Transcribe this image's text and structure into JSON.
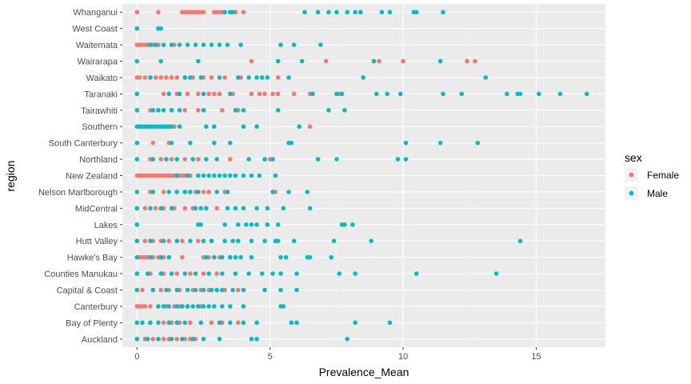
{
  "chart_data": {
    "type": "scatter",
    "xlabel": "Prevalence_Mean",
    "ylabel": "region",
    "xlim": [
      -0.55,
      17.6
    ],
    "xticks": [
      0,
      5,
      10,
      15
    ],
    "grid": true,
    "background": "#ebebeb",
    "legend": {
      "title": "sex",
      "position": "right",
      "entries": [
        {
          "name": "Female",
          "color": "#f8766d"
        },
        {
          "name": "Male",
          "color": "#00bfc4"
        }
      ]
    },
    "categories": [
      "Auckland",
      "Bay of Plenty",
      "Canterbury",
      "Capital & Coast",
      "Counties Manukau",
      "Hawke's Bay",
      "Hutt Valley",
      "Lakes",
      "MidCentral",
      "Nelson Marlborough",
      "New Zealand",
      "Northland",
      "South Canterbury",
      "Southern",
      "Tairawhiti",
      "Taranaki",
      "Waikato",
      "Wairarapa",
      "Waitemata",
      "West Coast",
      "Whanganui"
    ],
    "series": [
      {
        "name": "Female",
        "color": "#f8766d",
        "points": {
          "Auckland": [
            0,
            0.3,
            0.6,
            0.8,
            1.0,
            1.2,
            1.5,
            1.8,
            2.0,
            2.2
          ],
          "Bay of Plenty": [
            0,
            0.5,
            1.0,
            1.3,
            1.6,
            2.0,
            2.8,
            3.2,
            3.8
          ],
          "Canterbury": [
            0,
            0.1,
            0.2,
            0.3,
            0.5,
            0.8,
            1.1,
            1.4,
            1.6,
            1.9,
            2.4
          ],
          "Capital & Coast": [
            0,
            0.2,
            0.6,
            0.9,
            1.2,
            1.6,
            1.9,
            2.1,
            2.4,
            2.7,
            3.0,
            3.3,
            3.8
          ],
          "Counties Manukau": [
            0,
            0.5,
            1.0,
            1.5,
            2.0,
            2.5,
            3.0
          ],
          "Hawke's Bay": [
            0,
            0.1,
            0.2,
            0.3,
            0.4,
            0.6,
            0.8,
            1.0,
            1.7,
            2.5,
            2.7,
            3.1,
            3.5
          ],
          "Hutt Valley": [
            0,
            0.3,
            0.6,
            0.9,
            1.2,
            1.7,
            2.3,
            2.8
          ],
          "Lakes": [
            0
          ],
          "MidCentral": [
            0,
            0.3,
            0.7,
            1.0,
            1.4,
            1.8,
            2.1,
            2.6,
            3.0
          ],
          "Nelson Marlborough": [
            0,
            0.5,
            1.0,
            1.5,
            1.8,
            2.2,
            2.5,
            2.7,
            3.3,
            5.2
          ],
          "New Zealand": [
            0,
            0.1,
            0.2,
            0.3,
            0.4,
            0.5,
            0.6,
            0.7,
            0.8,
            0.9,
            1.0,
            1.1,
            1.2,
            1.3,
            1.4,
            1.5,
            1.6,
            1.7,
            1.8,
            1.9,
            2.0
          ],
          "Northland": [
            0,
            0.5,
            0.9,
            1.3,
            1.8,
            2.3,
            3.5,
            4.8,
            5.0
          ],
          "South Canterbury": [
            0,
            0.6,
            1.2
          ],
          "Southern": [
            0,
            0.5,
            0.9,
            1.4,
            6.5
          ],
          "Tairawhiti": [
            0,
            0.5,
            0.8,
            1.3,
            1.8,
            2.3,
            3.2,
            3.8
          ],
          "Taranaki": [
            0,
            1.0,
            1.5,
            1.9,
            2.3,
            2.7,
            2.9,
            3.1,
            3.6,
            4.3,
            4.6,
            4.8,
            5.1,
            5.3,
            5.9,
            6.5,
            7.6
          ],
          "Waikato": [
            0,
            0.1,
            0.3,
            0.5,
            0.7,
            0.9,
            1.1,
            1.3,
            1.5,
            1.8,
            2.1,
            2.5,
            2.8,
            3.3,
            3.9,
            5.3
          ],
          "Wairarapa": [
            0,
            4.3,
            7.1,
            8.9,
            9.1,
            10.0,
            11.4,
            12.4,
            12.7
          ],
          "Waitemata": [
            0,
            0.1,
            0.2,
            0.3,
            0.4,
            0.5,
            0.6,
            0.8,
            1.4
          ],
          "West Coast": [
            0
          ],
          "Whanganui": [
            0,
            0.8,
            1.7,
            1.8,
            1.9,
            2.0,
            2.1,
            2.2,
            2.3,
            2.4,
            2.5,
            2.9,
            3.0,
            3.1,
            3.2,
            3.5,
            3.7,
            4.0
          ]
        }
      },
      {
        "name": "Male",
        "color": "#00bfc4",
        "points": {
          "Auckland": [
            0,
            0.4,
            0.8,
            1.3,
            1.7,
            2.1,
            2.5,
            3.1,
            4.3,
            4.5,
            7.9
          ],
          "Bay of Plenty": [
            0,
            0.2,
            0.5,
            0.8,
            1.2,
            1.5,
            1.8,
            2.4,
            3.1,
            3.5,
            4.0,
            4.5,
            5.8,
            6.0,
            8.2,
            9.5
          ],
          "Canterbury": [
            0.8,
            1.0,
            1.2,
            1.5,
            1.7,
            1.9,
            2.1,
            2.3,
            2.5,
            2.7,
            2.9,
            3.2,
            3.5,
            4.0,
            5.4,
            5.5
          ],
          "Capital & Coast": [
            0,
            0.6,
            1.1,
            1.5,
            1.9,
            2.2,
            2.5,
            2.8,
            3.0,
            3.2,
            3.6,
            4.0,
            4.8,
            5.4,
            6.0
          ],
          "Counties Manukau": [
            0,
            0.4,
            0.9,
            1.3,
            1.8,
            2.2,
            2.7,
            3.2,
            3.7,
            4.2,
            4.7,
            5.1,
            5.4,
            6.0,
            7.6,
            8.2,
            10.5,
            13.5
          ],
          "Hawke's Bay": [
            0,
            0.5,
            0.9,
            1.2,
            2.6,
            2.9,
            3.2,
            3.5,
            3.7,
            3.9,
            4.3,
            5.4,
            5.6,
            6.4,
            6.5,
            7.3
          ],
          "Hutt Valley": [
            0,
            0.5,
            1.0,
            1.5,
            2.0,
            2.5,
            2.8,
            3.3,
            3.6,
            3.8,
            4.3,
            4.8,
            5.2,
            5.3,
            5.9,
            7.4,
            8.8,
            14.4
          ],
          "Lakes": [
            0,
            2.3,
            2.4,
            3.3,
            3.8,
            4.1,
            4.3,
            4.5,
            4.9,
            5.3,
            7.7,
            7.8,
            8.1
          ],
          "MidCentral": [
            0,
            0.5,
            0.9,
            1.3,
            2.2,
            2.4,
            2.6,
            3.4,
            3.7,
            4.0,
            4.5,
            4.9,
            5.5,
            6.5
          ],
          "Nelson Marlborough": [
            0,
            0.6,
            1.2,
            1.5,
            1.8,
            2.0,
            2.3,
            3.0,
            3.4,
            5.1,
            5.7,
            6.4
          ],
          "New Zealand": [
            1.5,
            1.9,
            2.3,
            2.5,
            2.7,
            2.9,
            3.1,
            3.3,
            3.5,
            3.7,
            4.0,
            4.3,
            4.6,
            5.2
          ],
          "Northland": [
            0,
            0.6,
            1.1,
            1.5,
            2.1,
            2.6,
            3.0,
            4.2,
            4.8,
            5.1,
            6.8,
            7.5,
            9.8,
            10.1
          ],
          "South Canterbury": [
            0,
            1.3,
            2.0,
            2.9,
            3.5,
            5.7,
            5.8,
            10.1,
            11.4,
            12.8
          ],
          "Southern": [
            0,
            0.1,
            0.2,
            0.3,
            0.4,
            0.5,
            0.6,
            0.7,
            0.8,
            0.9,
            1.0,
            1.1,
            1.2,
            1.3,
            1.6,
            2.6,
            2.9,
            4.0,
            4.5,
            6.1
          ],
          "Tairawhiti": [
            0,
            0.6,
            0.8,
            1.0,
            1.3,
            1.6,
            2.5,
            3.7,
            4.0,
            5.3,
            7.2,
            7.8
          ],
          "Taranaki": [
            0,
            1.2,
            1.6,
            2.5,
            3.5,
            6.6,
            7.5,
            7.7,
            9.0,
            9.4,
            9.9,
            11.5,
            12.2,
            13.9,
            14.3,
            14.4,
            15.1,
            15.9,
            16.9
          ],
          "Waikato": [
            0.5,
            1.8,
            2.0,
            2.4,
            3.1,
            3.8,
            4.2,
            4.5,
            4.7,
            4.9,
            5.7,
            8.5,
            13.1
          ],
          "Wairarapa": [
            0,
            0.9,
            2.3,
            5.3,
            6.2,
            8.9,
            11.4
          ],
          "Waitemata": [
            0.5,
            0.7,
            1.0,
            1.3,
            1.6,
            1.9,
            2.2,
            2.5,
            2.8,
            3.1,
            3.4,
            3.9,
            5.4,
            5.9,
            6.9
          ],
          "West Coast": [
            0,
            0.8,
            0.9
          ],
          "Whanganui": [
            3.3,
            3.5,
            3.6,
            6.3,
            6.8,
            7.2,
            7.5,
            7.9,
            8.2,
            8.4,
            9.2,
            9.5,
            10.4,
            10.5,
            11.5
          ]
        }
      }
    ]
  }
}
